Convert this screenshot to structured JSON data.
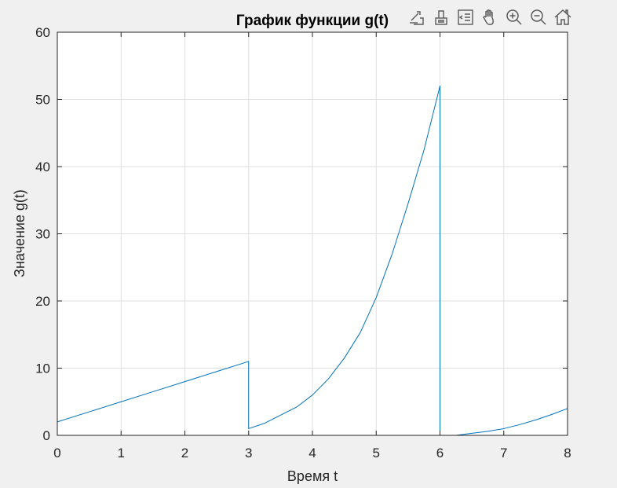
{
  "colors": {
    "background": "#f0f0f0",
    "axes_background": "#ffffff",
    "line": "#0072bd",
    "grid": "#dfdfdf",
    "axis": "#262626",
    "toolbar_icon": "#5a5a5a"
  },
  "toolbar": {
    "icons": [
      "export-icon",
      "brush-icon",
      "data-tips-icon",
      "pan-hand-icon",
      "zoom-in-icon",
      "zoom-out-icon",
      "home-icon"
    ]
  },
  "chart_data": {
    "type": "line",
    "title": "График функции g(t)",
    "xlabel": "Время t",
    "ylabel": "Значение g(t)",
    "xlim": [
      0,
      8
    ],
    "ylim": [
      0,
      60
    ],
    "xticks": [
      0,
      1,
      2,
      3,
      4,
      5,
      6,
      7,
      8
    ],
    "xtick_labels": [
      "0",
      "1",
      "2",
      "3",
      "4",
      "5",
      "6",
      "7",
      "8"
    ],
    "yticks": [
      0,
      10,
      20,
      30,
      40,
      50,
      60
    ],
    "ytick_labels": [
      "0",
      "10",
      "20",
      "30",
      "40",
      "50",
      "60"
    ],
    "grid": true,
    "series": [
      {
        "x": [
          0,
          0.5,
          1,
          1.5,
          2,
          2.5,
          3,
          3,
          3.25,
          3.5,
          3.75,
          4,
          4.25,
          4.5,
          4.75,
          5,
          5.25,
          5.5,
          5.75,
          6,
          6,
          6.25,
          6.5,
          6.75,
          7,
          7.25,
          7.5,
          7.75,
          8
        ],
        "y": [
          2,
          3.5,
          5,
          6.5,
          8,
          9.5,
          11,
          1,
          1.8,
          3,
          4.2,
          6,
          8.4,
          11.5,
          15.3,
          20.5,
          27,
          34.5,
          42.5,
          52,
          0,
          0,
          0.3,
          0.6,
          1,
          1.6,
          2.3,
          3.1,
          4
        ]
      }
    ]
  }
}
